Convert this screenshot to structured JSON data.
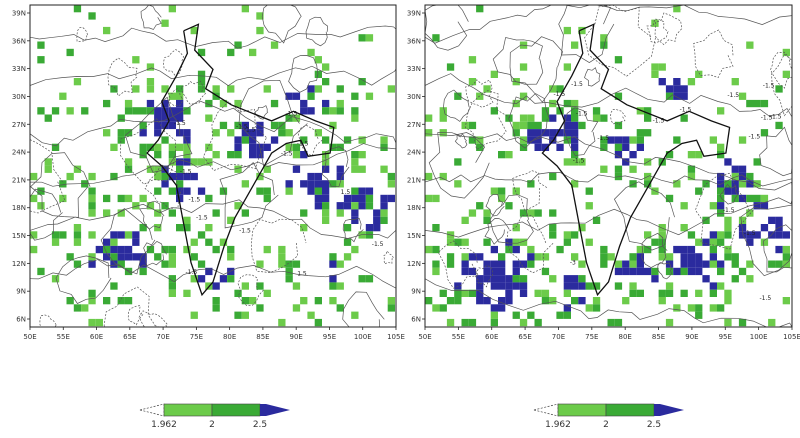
{
  "panels": [
    {
      "name": "left",
      "x_ticks": [
        "50E",
        "55E",
        "60E",
        "65E",
        "70E",
        "75E",
        "80E",
        "85E",
        "90E",
        "95E",
        "100E",
        "105E"
      ],
      "y_ticks": [
        "6N",
        "9N",
        "12N",
        "15N",
        "18N",
        "21N",
        "24N",
        "27N",
        "30N",
        "33N",
        "36N",
        "39N"
      ],
      "contour_labels": [
        "-1.5",
        "-1.5",
        "-1.5",
        "-1.5",
        "-1.5",
        "-1.5",
        "-1.5",
        "-1.5",
        "1.5",
        "1.5",
        "-1.5",
        "-1.5",
        "-1.5",
        "-1.5"
      ]
    },
    {
      "name": "right",
      "x_ticks": [
        "50E",
        "55E",
        "60E",
        "65E",
        "70E",
        "75E",
        "80E",
        "85E",
        "90E",
        "95E",
        "100E",
        "105E"
      ],
      "y_ticks": [
        "6N",
        "9N",
        "12N",
        "15N",
        "18N",
        "21N",
        "24N",
        "27N",
        "30N",
        "33N",
        "36N",
        "39N"
      ],
      "contour_labels": [
        "-1.5",
        "-1.5",
        "-1.5",
        "-1.5",
        "-1.5",
        "-1.5",
        "-1.5",
        "-1.5",
        "-1.5",
        "-1.5",
        "-1.5",
        "-3",
        "-1.5",
        "-1.5",
        "-1.5",
        "-1.5"
      ]
    }
  ],
  "colorbars": [
    {
      "labels": [
        "1.962",
        "2",
        "2.5"
      ]
    },
    {
      "labels": [
        "1.962",
        "2",
        "2.5"
      ]
    }
  ],
  "colors": {
    "light_green": "#6ccb4a",
    "green": "#3aaa35",
    "blue": "#2b2b9e",
    "contour": "#555555",
    "border": "#111111"
  }
}
